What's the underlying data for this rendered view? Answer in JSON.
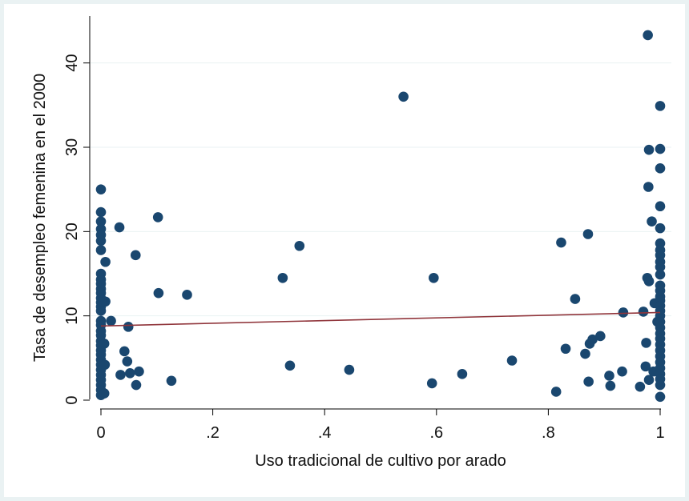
{
  "chart_data": {
    "type": "scatter",
    "xlabel": "Uso tradicional de cultivo por arado",
    "ylabel": "Tasa de desempleo femenina en el 2000",
    "xlim": [
      0,
      1
    ],
    "ylim": [
      0,
      45
    ],
    "x_ticks": [
      {
        "value": 0,
        "label": "0"
      },
      {
        "value": 0.2,
        "label": ".2"
      },
      {
        "value": 0.4,
        "label": ".4"
      },
      {
        "value": 0.6,
        "label": ".6"
      },
      {
        "value": 0.8,
        "label": ".8"
      },
      {
        "value": 1,
        "label": "1"
      }
    ],
    "y_ticks": [
      {
        "value": 0,
        "label": "0"
      },
      {
        "value": 10,
        "label": "10"
      },
      {
        "value": 20,
        "label": "20"
      },
      {
        "value": 30,
        "label": "30"
      },
      {
        "value": 40,
        "label": "40"
      }
    ],
    "grid": "horizontal",
    "colors": {
      "points": "#1a476f",
      "fit_line": "#90353b",
      "grid": "#eaf2f3",
      "background": "#eaf2f3"
    },
    "fit_line": {
      "x": [
        0,
        1
      ],
      "y": [
        8.8,
        10.4
      ]
    },
    "points": [
      {
        "x": 0,
        "y": 25.0
      },
      {
        "x": 0,
        "y": 22.3
      },
      {
        "x": 0,
        "y": 21.2
      },
      {
        "x": 0,
        "y": 20.3
      },
      {
        "x": 0,
        "y": 19.6
      },
      {
        "x": 0,
        "y": 18.9
      },
      {
        "x": 0,
        "y": 17.8
      },
      {
        "x": 0,
        "y": 15.0
      },
      {
        "x": 0,
        "y": 14.3
      },
      {
        "x": 0,
        "y": 13.8
      },
      {
        "x": 0,
        "y": 13.2
      },
      {
        "x": 0,
        "y": 12.7
      },
      {
        "x": 0,
        "y": 12.1
      },
      {
        "x": 0,
        "y": 11.6
      },
      {
        "x": 0,
        "y": 11.1
      },
      {
        "x": 0,
        "y": 10.6
      },
      {
        "x": 0,
        "y": 9.4
      },
      {
        "x": 0,
        "y": 8.9
      },
      {
        "x": 0,
        "y": 8.2
      },
      {
        "x": 0,
        "y": 7.7
      },
      {
        "x": 0,
        "y": 7.0
      },
      {
        "x": 0,
        "y": 6.5
      },
      {
        "x": 0,
        "y": 5.9
      },
      {
        "x": 0,
        "y": 5.4
      },
      {
        "x": 0,
        "y": 4.8
      },
      {
        "x": 0,
        "y": 4.2
      },
      {
        "x": 0,
        "y": 3.6
      },
      {
        "x": 0,
        "y": 3.0
      },
      {
        "x": 0,
        "y": 2.4
      },
      {
        "x": 0,
        "y": 1.8
      },
      {
        "x": 0,
        "y": 1.2
      },
      {
        "x": 0,
        "y": 0.6
      },
      {
        "x": 0.008,
        "y": 16.4
      },
      {
        "x": 0.008,
        "y": 11.7
      },
      {
        "x": 0.006,
        "y": 6.7
      },
      {
        "x": 0.007,
        "y": 4.2
      },
      {
        "x": 0.006,
        "y": 0.8
      },
      {
        "x": 0.018,
        "y": 9.4
      },
      {
        "x": 0.033,
        "y": 20.5
      },
      {
        "x": 0.035,
        "y": 3.0
      },
      {
        "x": 0.042,
        "y": 5.8
      },
      {
        "x": 0.047,
        "y": 4.6
      },
      {
        "x": 0.049,
        "y": 8.7
      },
      {
        "x": 0.052,
        "y": 3.2
      },
      {
        "x": 0.062,
        "y": 17.2
      },
      {
        "x": 0.063,
        "y": 1.8
      },
      {
        "x": 0.068,
        "y": 3.4
      },
      {
        "x": 0.102,
        "y": 21.7
      },
      {
        "x": 0.103,
        "y": 12.7
      },
      {
        "x": 0.126,
        "y": 2.3
      },
      {
        "x": 0.154,
        "y": 12.5
      },
      {
        "x": 0.325,
        "y": 14.5
      },
      {
        "x": 0.338,
        "y": 4.1
      },
      {
        "x": 0.355,
        "y": 18.3
      },
      {
        "x": 0.444,
        "y": 3.6
      },
      {
        "x": 0.541,
        "y": 36.0
      },
      {
        "x": 0.592,
        "y": 2.0
      },
      {
        "x": 0.595,
        "y": 14.5
      },
      {
        "x": 0.646,
        "y": 3.1
      },
      {
        "x": 0.735,
        "y": 4.7
      },
      {
        "x": 0.814,
        "y": 1.0
      },
      {
        "x": 0.823,
        "y": 18.7
      },
      {
        "x": 0.831,
        "y": 6.1
      },
      {
        "x": 0.848,
        "y": 12.0
      },
      {
        "x": 0.866,
        "y": 5.5
      },
      {
        "x": 0.871,
        "y": 19.7
      },
      {
        "x": 0.872,
        "y": 2.2
      },
      {
        "x": 0.874,
        "y": 6.7
      },
      {
        "x": 0.879,
        "y": 7.2
      },
      {
        "x": 0.893,
        "y": 7.6
      },
      {
        "x": 0.909,
        "y": 2.9
      },
      {
        "x": 0.911,
        "y": 1.7
      },
      {
        "x": 0.932,
        "y": 3.4
      },
      {
        "x": 0.934,
        "y": 10.4
      },
      {
        "x": 0.964,
        "y": 1.6
      },
      {
        "x": 0.97,
        "y": 10.5
      },
      {
        "x": 0.974,
        "y": 4.0
      },
      {
        "x": 0.975,
        "y": 6.8
      },
      {
        "x": 0.977,
        "y": 14.5
      },
      {
        "x": 0.978,
        "y": 43.3
      },
      {
        "x": 0.979,
        "y": 25.3
      },
      {
        "x": 0.98,
        "y": 2.4
      },
      {
        "x": 0.98,
        "y": 14.1
      },
      {
        "x": 0.98,
        "y": 29.7
      },
      {
        "x": 0.985,
        "y": 21.2
      },
      {
        "x": 0.988,
        "y": 3.4
      },
      {
        "x": 0.99,
        "y": 11.5
      },
      {
        "x": 0.995,
        "y": 9.3
      },
      {
        "x": 1,
        "y": 34.9
      },
      {
        "x": 1,
        "y": 29.8
      },
      {
        "x": 1,
        "y": 27.5
      },
      {
        "x": 1,
        "y": 23.0
      },
      {
        "x": 1,
        "y": 20.4
      },
      {
        "x": 1,
        "y": 18.6
      },
      {
        "x": 1,
        "y": 17.8
      },
      {
        "x": 1,
        "y": 17.2
      },
      {
        "x": 1,
        "y": 16.4
      },
      {
        "x": 1,
        "y": 15.8
      },
      {
        "x": 1,
        "y": 14.9
      },
      {
        "x": 1,
        "y": 13.6
      },
      {
        "x": 1,
        "y": 13.0
      },
      {
        "x": 1,
        "y": 12.3
      },
      {
        "x": 1,
        "y": 11.8
      },
      {
        "x": 1,
        "y": 11.2
      },
      {
        "x": 1,
        "y": 10.6
      },
      {
        "x": 1,
        "y": 10.0
      },
      {
        "x": 1,
        "y": 9.3
      },
      {
        "x": 1,
        "y": 8.6
      },
      {
        "x": 1,
        "y": 7.9
      },
      {
        "x": 1,
        "y": 7.3
      },
      {
        "x": 1,
        "y": 6.6
      },
      {
        "x": 1,
        "y": 5.9
      },
      {
        "x": 1,
        "y": 5.2
      },
      {
        "x": 1,
        "y": 4.5
      },
      {
        "x": 1,
        "y": 3.8
      },
      {
        "x": 1,
        "y": 3.1
      },
      {
        "x": 1,
        "y": 2.5
      },
      {
        "x": 1,
        "y": 1.8
      },
      {
        "x": 1,
        "y": 0.4
      }
    ]
  }
}
